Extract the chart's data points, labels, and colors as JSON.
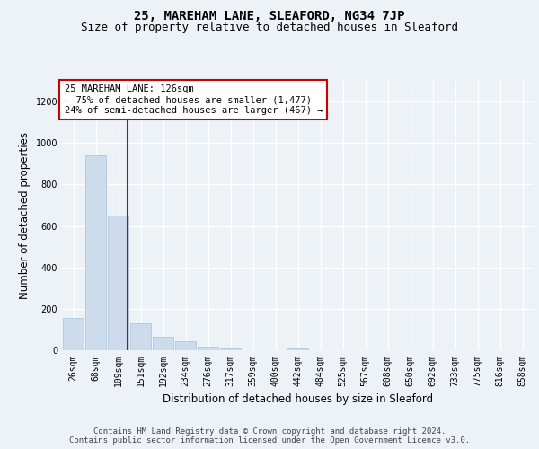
{
  "title": "25, MAREHAM LANE, SLEAFORD, NG34 7JP",
  "subtitle": "Size of property relative to detached houses in Sleaford",
  "xlabel": "Distribution of detached houses by size in Sleaford",
  "ylabel": "Number of detached properties",
  "footer_line1": "Contains HM Land Registry data © Crown copyright and database right 2024.",
  "footer_line2": "Contains public sector information licensed under the Open Government Licence v3.0.",
  "categories": [
    "26sqm",
    "68sqm",
    "109sqm",
    "151sqm",
    "192sqm",
    "234sqm",
    "276sqm",
    "317sqm",
    "359sqm",
    "400sqm",
    "442sqm",
    "484sqm",
    "525sqm",
    "567sqm",
    "608sqm",
    "650sqm",
    "692sqm",
    "733sqm",
    "775sqm",
    "816sqm",
    "858sqm"
  ],
  "values": [
    155,
    940,
    650,
    130,
    65,
    45,
    18,
    10,
    0,
    0,
    10,
    0,
    0,
    0,
    0,
    0,
    0,
    0,
    0,
    0,
    0
  ],
  "bar_color": "#ccdcec",
  "bar_edgecolor": "#aac0d8",
  "annotation_text_line1": "25 MAREHAM LANE: 126sqm",
  "annotation_text_line2": "← 75% of detached houses are smaller (1,477)",
  "annotation_text_line3": "24% of semi-detached houses are larger (467) →",
  "annotation_box_color": "#ffffff",
  "annotation_box_edgecolor": "#cc0000",
  "vline_color": "#cc0000",
  "ylim": [
    0,
    1300
  ],
  "yticks": [
    0,
    200,
    400,
    600,
    800,
    1000,
    1200
  ],
  "bg_color": "#edf2f7",
  "plot_bg_color": "#edf2f7",
  "grid_color": "#ffffff",
  "title_fontsize": 10,
  "subtitle_fontsize": 9,
  "axis_label_fontsize": 8.5,
  "tick_fontsize": 7,
  "annotation_fontsize": 7.5,
  "footer_fontsize": 6.5
}
